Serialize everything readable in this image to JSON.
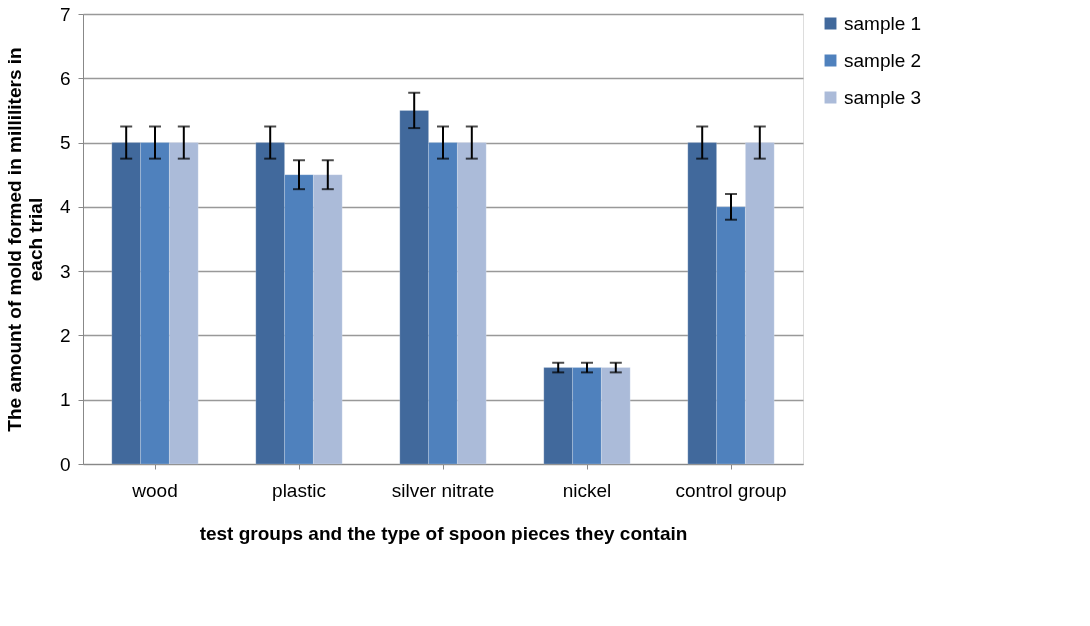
{
  "chart_data": {
    "type": "bar",
    "xlabel": "test groups and the type of spoon pieces they contain",
    "ylabel": "The amount of mold formed in milliliters in each trial",
    "categories": [
      "wood",
      "plastic",
      "silver nitrate",
      "nickel",
      "control group"
    ],
    "series": [
      {
        "name": "sample 1",
        "color": "#41699c",
        "values": [
          5,
          5,
          5.5,
          1.5,
          5
        ],
        "errors": [
          0.25,
          0.25,
          0.275,
          0.075,
          0.25
        ]
      },
      {
        "name": "sample 2",
        "color": "#4f81bd",
        "values": [
          5,
          4.5,
          5,
          1.5,
          4
        ],
        "errors": [
          0.25,
          0.225,
          0.25,
          0.075,
          0.2
        ]
      },
      {
        "name": "sample 3",
        "color": "#abbbd9",
        "values": [
          5,
          4.5,
          5,
          1.5,
          5
        ],
        "errors": [
          0.25,
          0.225,
          0.25,
          0.075,
          0.25
        ]
      }
    ],
    "ylim": [
      0,
      7
    ],
    "yticks": [
      0,
      1,
      2,
      3,
      4,
      5,
      6,
      7
    ],
    "grid": "y",
    "legend": "right"
  }
}
